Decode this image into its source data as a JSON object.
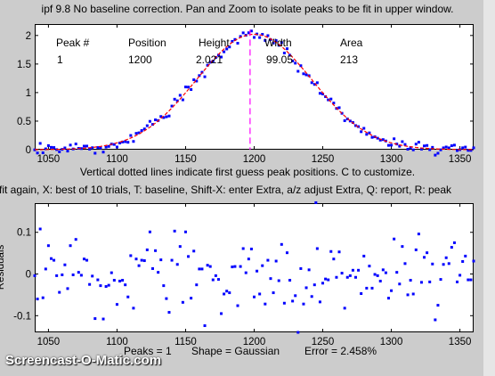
{
  "title": "ipf 9.8  No baseline correction. Pan and Zoom to isolate peaks to be fit in upper window.",
  "subtitle1": "Vertical dotted lines indicate first guess peak positions. C to customize.",
  "subtitle2": "fit again, X: best of 10 trials, T: baseline, Shift-X: enter Extra, a/z adjust Extra, Q: report, R: peak",
  "status": {
    "peaks": "Peaks = 1",
    "shape": "Shape = Gaussian",
    "error": "Error = 2.458%"
  },
  "table": {
    "headers": [
      "Peak #",
      "Position",
      "Height",
      "Width",
      "Area"
    ],
    "row": [
      "1",
      "1200",
      "2.021",
      "99.05",
      "213"
    ]
  },
  "watermark": "Screencast-O-Matic.com",
  "residuals_ylabel": "Residuals",
  "colors": {
    "points": "#0000ff",
    "fit": "#ff0000",
    "peak_marker": "#ff00ff"
  },
  "chart_data": [
    {
      "type": "scatter",
      "name": "upper",
      "xlim": [
        1040,
        1360
      ],
      "ylim": [
        0,
        2.2
      ],
      "xticks": [
        1050,
        1100,
        1150,
        1200,
        1250,
        1300,
        1350
      ],
      "yticks": [
        0,
        0.5,
        1,
        1.5,
        2
      ],
      "ytick_labels": [
        "0",
        "0.5",
        "1",
        "1.5",
        "2"
      ],
      "fit": {
        "shape": "Gaussian",
        "position": 1200,
        "height": 2.021,
        "width": 99.05
      },
      "first_guess_x": 1197,
      "x_range": [
        1040,
        1360
      ],
      "x_step": 2
    },
    {
      "type": "scatter",
      "name": "residuals",
      "xlim": [
        1040,
        1360
      ],
      "ylim": [
        -0.14,
        0.17
      ],
      "xticks": [
        1050,
        1100,
        1150,
        1200,
        1250,
        1300,
        1350
      ],
      "yticks": [
        -0.1,
        0,
        0.1
      ],
      "ytick_labels": [
        "-0.1",
        "0",
        "0.1"
      ],
      "values": [
        -0.004,
        -0.06,
        0.108,
        -0.057,
        0.012,
        0.068,
        0.037,
        0.033,
        -0.004,
        -0.044,
        -0.002,
        0.022,
        -0.035,
        0.068,
        -0.002,
        0.083,
        0.004,
        -0.003,
        0.036,
        0.033,
        -0.025,
        -0.005,
        -0.107,
        -0.014,
        -0.028,
        -0.108,
        -0.03,
        -0.027,
        0.003,
        -0.015,
        -0.073,
        -0.017,
        -0.015,
        -0.026,
        -0.055,
        0.044,
        -0.082,
        0.036,
        0.02,
        0.033,
        0.032,
        0.058,
        0.101,
        0.013,
        0.056,
        0.004,
        0.034,
        -0.028,
        -0.059,
        -0.092,
        0.033,
        0.103,
        0.023,
        0.066,
        -0.068,
        0.101,
        0.042,
        -0.058,
        0.055,
        -0.026,
        0.012,
        0.012,
        -0.124,
        0.021,
        0.018,
        -0.014,
        -0.004,
        -0.013,
        -0.095,
        -0.048,
        -0.041,
        -0.045,
        0.017,
        0.018,
        -0.076,
        0.018,
        0.061,
        0.003,
        0.036,
        0.06,
        -0.055,
        0.007,
        -0.048,
        0.02,
        -0.072,
        0.033,
        -0.011,
        -0.045,
        0.031,
        -0.016,
        0.071,
        -0.07,
        0.051,
        -0.015,
        -0.065,
        -0.052,
        -0.14,
        0.013,
        -0.072,
        -0.033,
        0.01,
        -0.054,
        -0.026,
        0.061,
        -0.067,
        -0.022,
        -0.012,
        -0.014,
        0.054,
        0.036,
        -0.008,
        0.053,
        0.002,
        -0.082,
        -0.008,
        -0.004,
        0.009,
        -0.008,
        0.009,
        -0.047,
        0.043,
        -0.034,
        0.019,
        -0.034,
        -0.001,
        -0.004,
        -0.017,
        0.01,
        0.003,
        -0.058,
        -0.04,
        0.084,
        0.004,
        -0.024,
        0.066,
        0.025,
        -0.05,
        -0.015,
        -0.048,
        0.058,
        0.096,
        -0.02,
        0.04,
        0.051,
        -0.019,
        0.024,
        -0.11,
        -0.075,
        -0.013,
        0.023,
        0.039,
        0.025,
        0.064,
        0.075,
        -0.019,
        -0.003,
        0.03,
        0.043,
        -0.014,
        -0.014,
        0.031
      ],
      "x_range": [
        1040,
        1360
      ],
      "x_step": 2
    }
  ]
}
